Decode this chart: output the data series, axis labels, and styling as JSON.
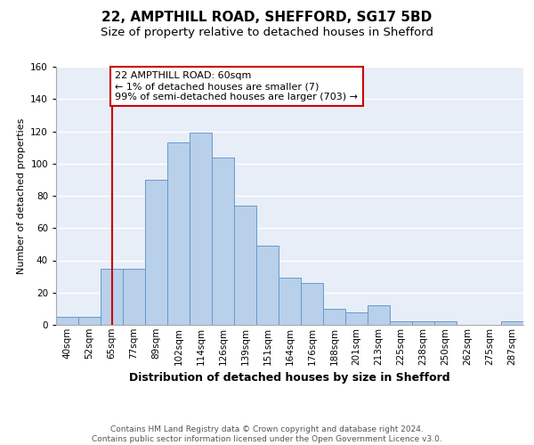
{
  "title": "22, AMPTHILL ROAD, SHEFFORD, SG17 5BD",
  "subtitle": "Size of property relative to detached houses in Shefford",
  "xlabel": "Distribution of detached houses by size in Shefford",
  "ylabel": "Number of detached properties",
  "bin_labels": [
    "40sqm",
    "52sqm",
    "65sqm",
    "77sqm",
    "89sqm",
    "102sqm",
    "114sqm",
    "126sqm",
    "139sqm",
    "151sqm",
    "164sqm",
    "176sqm",
    "188sqm",
    "201sqm",
    "213sqm",
    "225sqm",
    "238sqm",
    "250sqm",
    "262sqm",
    "275sqm",
    "287sqm"
  ],
  "bar_values": [
    5,
    5,
    35,
    35,
    90,
    113,
    119,
    104,
    74,
    49,
    29,
    26,
    10,
    8,
    12,
    2,
    2,
    2,
    0,
    0,
    2
  ],
  "bar_color": "#b8d0ea",
  "bar_edge_color": "#6699cc",
  "vline_x_index": 2,
  "vline_color": "#cc0000",
  "annotation_text": "22 AMPTHILL ROAD: 60sqm\n← 1% of detached houses are smaller (7)\n99% of semi-detached houses are larger (703) →",
  "annotation_box_color": "#ffffff",
  "annotation_box_edge": "#cc0000",
  "ylim": [
    0,
    160
  ],
  "yticks": [
    0,
    20,
    40,
    60,
    80,
    100,
    120,
    140,
    160
  ],
  "footer_text": "Contains HM Land Registry data © Crown copyright and database right 2024.\nContains public sector information licensed under the Open Government Licence v3.0.",
  "background_color": "#e8eef8",
  "grid_color": "#ffffff",
  "title_fontsize": 11,
  "subtitle_fontsize": 9.5,
  "xlabel_fontsize": 9,
  "ylabel_fontsize": 8,
  "tick_fontsize": 7.5,
  "annotation_fontsize": 8,
  "footer_fontsize": 6.5
}
